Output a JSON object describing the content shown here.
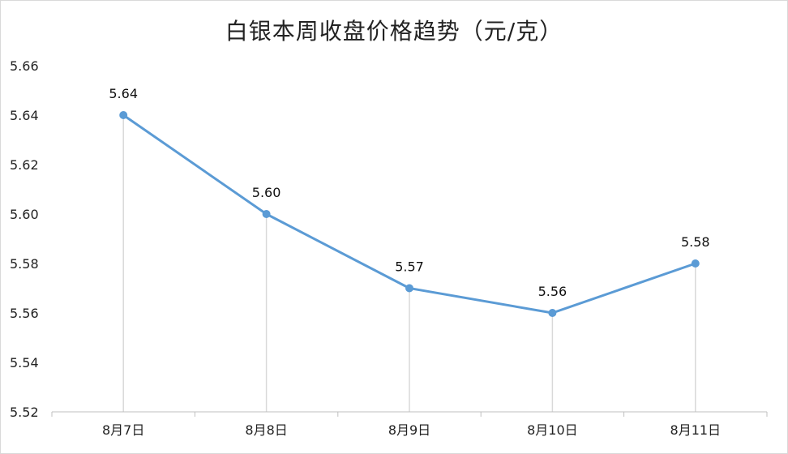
{
  "chart_data": {
    "type": "line",
    "title": "白银本周收盘价格趋势（元/克）",
    "xlabel": "",
    "ylabel": "",
    "categories": [
      "8月7日",
      "8月8日",
      "8月9日",
      "8月10日",
      "8月11日"
    ],
    "series": [
      {
        "values": [
          5.64,
          5.6,
          5.57,
          5.56,
          5.58
        ],
        "data_labels": [
          "5.64",
          "5.60",
          "5.57",
          "5.56",
          "5.58"
        ]
      }
    ],
    "ylim": [
      5.52,
      5.66
    ],
    "y_ticks": [
      "5.52",
      "5.54",
      "5.56",
      "5.58",
      "5.60",
      "5.62",
      "5.64",
      "5.66"
    ],
    "grid": false,
    "drop_lines": true,
    "colors": {
      "line": "#5B9BD5",
      "marker": "#5B9BD5",
      "drop_line": "#d9d9d9",
      "axis": "#bfbfbf"
    }
  }
}
